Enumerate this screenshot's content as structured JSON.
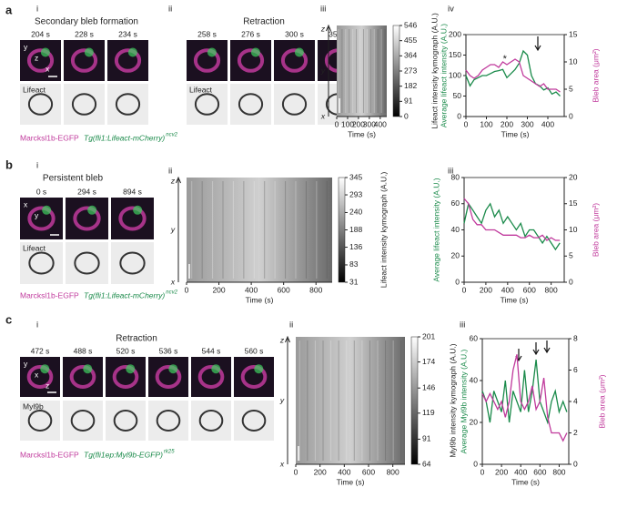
{
  "panels": [
    {
      "letter": "a",
      "subpanels": [
        "i",
        "ii",
        "iii",
        "iv"
      ],
      "headings": [
        "Secondary bleb formation",
        "Retraction"
      ],
      "times": [
        "204 s",
        "228 s",
        "234 s",
        "258 s",
        "276 s",
        "300 s",
        "354 s"
      ],
      "channel": "Lifeact",
      "image_axes": [
        "y",
        "z",
        "x"
      ],
      "membrane": "Marcksl1b-EGFP",
      "transgene": "Tg(fli1:Lifeact-mCherry)",
      "allele": "ncv2"
    },
    {
      "letter": "b",
      "subpanels": [
        "i",
        "ii",
        "iii"
      ],
      "headings": [
        "Persistent bleb"
      ],
      "times": [
        "0 s",
        "294 s",
        "894 s"
      ],
      "channel": "Lifeact",
      "image_axes": [
        "x",
        "y"
      ],
      "membrane": "Marcksl1b-EGFP",
      "transgene": "Tg(fli1:Lifeact-mCherry)",
      "allele": "ncv2"
    },
    {
      "letter": "c",
      "subpanels": [
        "i",
        "ii",
        "iii"
      ],
      "headings": [
        "Retraction"
      ],
      "times": [
        "472 s",
        "488 s",
        "520 s",
        "536 s",
        "544 s",
        "560 s"
      ],
      "channel": "Myl9b",
      "image_axes": [
        "y",
        "x",
        "z"
      ],
      "membrane": "Marcksl1b-EGFP",
      "transgene": "Tg(fli1ep:Myl9b-EGFP)",
      "allele": "rk25"
    }
  ],
  "chart_data": [
    {
      "type": "kymograph",
      "axis_letters": [
        "z",
        "y",
        "x"
      ],
      "xlabel": "Time (s)",
      "xlim": [
        0,
        460
      ],
      "xticks": [
        0,
        100,
        200,
        300,
        400
      ],
      "clabel": "Lifeact intensity kymograph (A.U.)",
      "clim": [
        0,
        546
      ],
      "cticks": [
        0,
        91,
        182,
        273,
        364,
        455,
        546
      ]
    },
    {
      "type": "line",
      "xlabel": "Time (s)",
      "ylabel": "Average lifeact intensity (A.U.)",
      "y2label": "Bleb area (μm²)",
      "xlim": [
        0,
        480
      ],
      "xticks": [
        0,
        100,
        200,
        300,
        400
      ],
      "ylim": [
        0,
        200
      ],
      "yticks": [
        0,
        50,
        100,
        150,
        200
      ],
      "y2lim": [
        0,
        15
      ],
      "y2ticks": [
        0,
        5,
        10,
        15
      ],
      "x": [
        0,
        20,
        40,
        60,
        80,
        100,
        120,
        140,
        160,
        180,
        200,
        220,
        240,
        260,
        280,
        300,
        320,
        340,
        360,
        380,
        400,
        420,
        440,
        460
      ],
      "series": [
        {
          "color": "#1a8a4a",
          "values": [
            100,
            75,
            90,
            95,
            100,
            100,
            105,
            110,
            112,
            115,
            95,
            105,
            115,
            130,
            160,
            150,
            100,
            80,
            75,
            65,
            70,
            55,
            60,
            50
          ]
        },
        {
          "color": "#c0399c",
          "axis": "y2",
          "values": [
            8.5,
            7.5,
            7,
            7.5,
            8.5,
            9,
            9.5,
            9.5,
            9,
            10,
            9.5,
            10,
            10.5,
            10,
            7.5,
            7,
            6.5,
            6,
            5.5,
            6,
            5,
            5,
            5,
            4.5
          ]
        }
      ],
      "annotations": [
        {
          "text": "*",
          "x": 190,
          "y": 140
        }
      ]
    },
    {
      "type": "kymograph",
      "axis_letters": [
        "z",
        "y",
        "x"
      ],
      "xlabel": "Time (s)",
      "xlim": [
        0,
        900
      ],
      "xticks": [
        0,
        200,
        400,
        600,
        800
      ],
      "clabel": "Lifeact intensity kymograph (A.U.)",
      "clim": [
        31,
        345
      ],
      "cticks": [
        31,
        83,
        136,
        188,
        240,
        293,
        345
      ]
    },
    {
      "type": "line",
      "xlabel": "Time (s)",
      "ylabel": "Average lifeact intensity (A.U.)",
      "y2label": "Bleb area (μm²)",
      "xlim": [
        0,
        920
      ],
      "xticks": [
        0,
        200,
        400,
        600,
        800
      ],
      "ylim": [
        0,
        80
      ],
      "yticks": [
        0,
        20,
        40,
        60,
        80
      ],
      "y2lim": [
        0,
        20
      ],
      "y2ticks": [
        0,
        5,
        10,
        15,
        20
      ],
      "x": [
        0,
        40,
        80,
        120,
        160,
        200,
        240,
        280,
        320,
        360,
        400,
        440,
        480,
        520,
        560,
        600,
        640,
        680,
        720,
        760,
        800,
        840,
        880
      ],
      "series": [
        {
          "color": "#1a8a4a",
          "values": [
            45,
            60,
            55,
            50,
            45,
            55,
            60,
            50,
            55,
            45,
            50,
            45,
            40,
            45,
            35,
            40,
            40,
            35,
            30,
            35,
            30,
            25,
            30
          ]
        },
        {
          "color": "#c0399c",
          "axis": "y2",
          "values": [
            16,
            15,
            12,
            11,
            11,
            10,
            10,
            10,
            9.5,
            9,
            9,
            9,
            9,
            8.5,
            8.5,
            9,
            8.5,
            8.5,
            9,
            8,
            8.5,
            8,
            8
          ]
        }
      ]
    },
    {
      "type": "kymograph",
      "axis_letters": [
        "z",
        "y",
        "x"
      ],
      "xlabel": "Time (s)",
      "xlim": [
        0,
        900
      ],
      "xticks": [
        0,
        200,
        400,
        600,
        800
      ],
      "clabel": "Myl9b intensity kymograph (A.U.)",
      "clim": [
        64,
        201
      ],
      "cticks": [
        64,
        91,
        119,
        146,
        174,
        201
      ]
    },
    {
      "type": "line",
      "xlabel": "Time (s)",
      "ylabel": "Average Myl9b intensity (A.U.)",
      "y2label": "Bleb area (μm²)",
      "xlim": [
        0,
        900
      ],
      "xticks": [
        0,
        200,
        400,
        600,
        800
      ],
      "ylim": [
        0,
        60
      ],
      "yticks": [
        0,
        20,
        40,
        60
      ],
      "y2lim": [
        0,
        8
      ],
      "y2ticks": [
        0,
        2,
        4,
        6,
        8
      ],
      "x": [
        0,
        40,
        80,
        120,
        160,
        200,
        240,
        280,
        320,
        360,
        400,
        440,
        480,
        520,
        560,
        600,
        640,
        680,
        720,
        760,
        800,
        840,
        880
      ],
      "series": [
        {
          "color": "#1a8a4a",
          "values": [
            35,
            30,
            20,
            35,
            30,
            25,
            40,
            20,
            35,
            30,
            25,
            45,
            25,
            35,
            50,
            30,
            25,
            20,
            30,
            35,
            25,
            30,
            25
          ]
        },
        {
          "color": "#c0399c",
          "axis": "y2",
          "values": [
            4.5,
            4,
            4.5,
            4,
            3.5,
            4,
            3,
            4,
            6,
            7,
            4,
            3.5,
            4,
            5,
            3.5,
            4,
            5.5,
            3,
            2,
            2,
            2,
            1.5,
            2
          ]
        }
      ]
    }
  ]
}
